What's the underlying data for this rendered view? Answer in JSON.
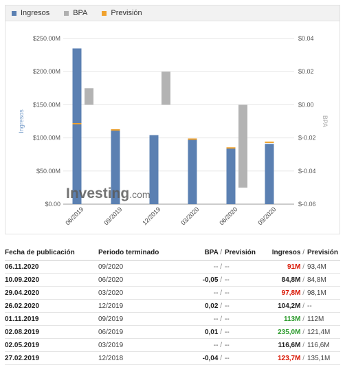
{
  "legend": [
    {
      "label": "Ingresos",
      "color": "#5b80b2"
    },
    {
      "label": "BPA",
      "color": "#b0b0b0"
    },
    {
      "label": "Previsión",
      "color": "#f0a22e"
    }
  ],
  "watermark": {
    "brand": "Investing",
    "suffix": ".com"
  },
  "chart_data": {
    "type": "bar",
    "categories": [
      "06/2019",
      "09/2019",
      "12/2019",
      "03/2020",
      "06/2020",
      "09/2020"
    ],
    "y_left": {
      "label": "Ingresos",
      "ticks": [
        "$0.00",
        "$50.00M",
        "$100.00M",
        "$150.00M",
        "$200.00M",
        "$250.00M"
      ],
      "ylim": [
        0,
        250
      ]
    },
    "y_right": {
      "label": "BPA",
      "ticks": [
        "$-0.06",
        "$-0.04",
        "$-0.02",
        "$0.00",
        "$0.02",
        "$0.04"
      ],
      "ylim": [
        -0.06,
        0.04
      ]
    },
    "series": [
      {
        "name": "Ingresos",
        "axis": "left",
        "values": [
          235.0,
          113.0,
          104.2,
          97.8,
          84.8,
          91.0
        ]
      },
      {
        "name": "BPA",
        "axis": "right",
        "values": [
          0.01,
          null,
          0.02,
          null,
          -0.05,
          null
        ]
      },
      {
        "name": "Previsión",
        "axis": "left",
        "values": [
          121.4,
          112.0,
          null,
          98.1,
          84.8,
          93.4
        ]
      }
    ],
    "grid": true,
    "legend_position": "top-left"
  },
  "table": {
    "headers": {
      "date": "Fecha de publicación",
      "period": "Periodo terminado",
      "eps": "BPA",
      "forecast": "Previsión",
      "revenue": "Ingresos"
    },
    "sep": "/",
    "rows": [
      {
        "date": "06.11.2020",
        "period": "09/2020",
        "eps": "--",
        "eps_forecast": "--",
        "eps_style": "",
        "rev": "91M",
        "rev_forecast": "93,4M",
        "rev_style": "red"
      },
      {
        "date": "10.09.2020",
        "period": "06/2020",
        "eps": "-0,05",
        "eps_forecast": "--",
        "eps_style": "b",
        "rev": "84,8M",
        "rev_forecast": "84,8M",
        "rev_style": "b"
      },
      {
        "date": "29.04.2020",
        "period": "03/2020",
        "eps": "--",
        "eps_forecast": "--",
        "eps_style": "",
        "rev": "97,8M",
        "rev_forecast": "98,1M",
        "rev_style": "red"
      },
      {
        "date": "26.02.2020",
        "period": "12/2019",
        "eps": "0,02",
        "eps_forecast": "--",
        "eps_style": "b",
        "rev": "104,2M",
        "rev_forecast": "--",
        "rev_style": "b"
      },
      {
        "date": "01.11.2019",
        "period": "09/2019",
        "eps": "--",
        "eps_forecast": "--",
        "eps_style": "",
        "rev": "113M",
        "rev_forecast": "112M",
        "rev_style": "green"
      },
      {
        "date": "02.08.2019",
        "period": "06/2019",
        "eps": "0,01",
        "eps_forecast": "--",
        "eps_style": "b",
        "rev": "235,0M",
        "rev_forecast": "121,4M",
        "rev_style": "green"
      },
      {
        "date": "02.05.2019",
        "period": "03/2019",
        "eps": "--",
        "eps_forecast": "--",
        "eps_style": "",
        "rev": "116,6M",
        "rev_forecast": "116,6M",
        "rev_style": "b"
      },
      {
        "date": "27.02.2019",
        "period": "12/2018",
        "eps": "-0,04",
        "eps_forecast": "--",
        "eps_style": "b",
        "rev": "123,7M",
        "rev_forecast": "135,1M",
        "rev_style": "red"
      }
    ]
  }
}
